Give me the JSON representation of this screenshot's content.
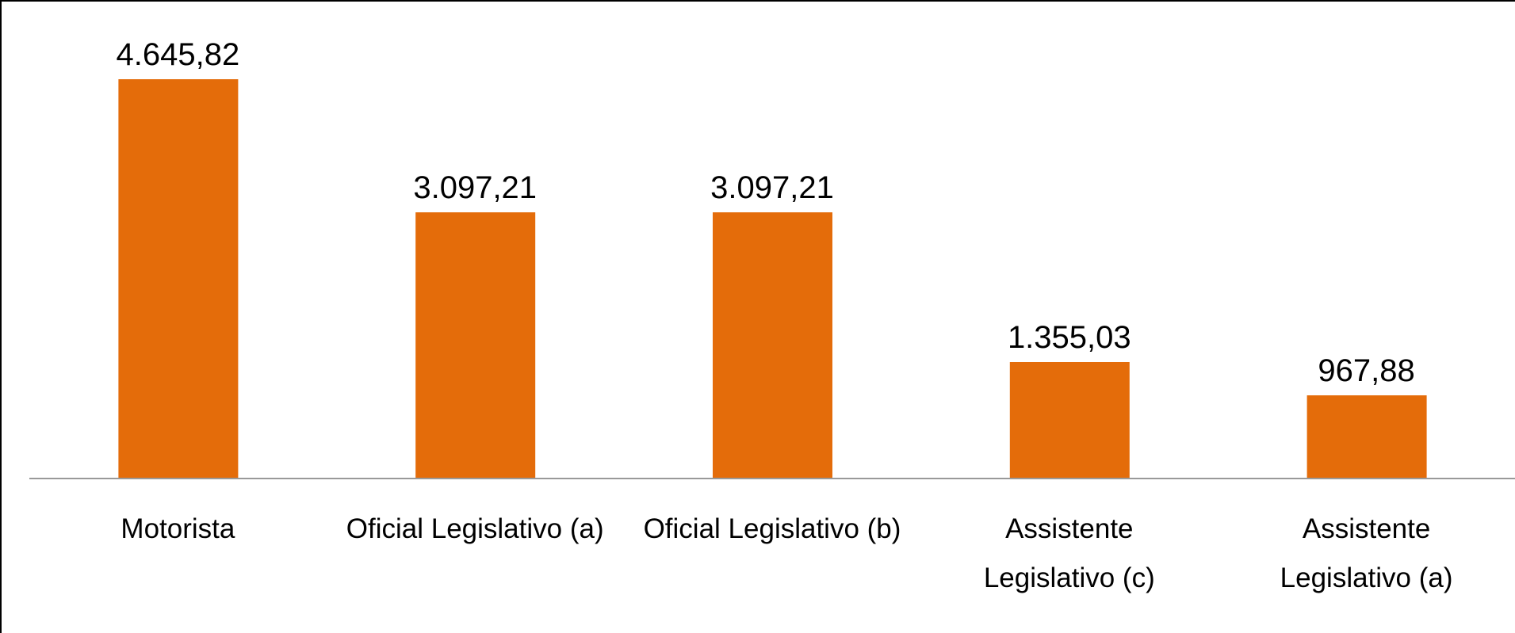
{
  "chart_data": {
    "type": "bar",
    "categories": [
      "Motorista",
      "Oficial Legislativo (a)",
      "Oficial Legislativo (b)",
      "Assistente Legislativo (c)",
      "Assistente Legislativo (a)"
    ],
    "values": [
      4645.82,
      3097.21,
      3097.21,
      1355.03,
      967.88
    ],
    "value_labels": [
      "4.645,82",
      "3.097,21",
      "3.097,21",
      "1.355,03",
      "967,88"
    ],
    "color": "#e46c0a"
  }
}
